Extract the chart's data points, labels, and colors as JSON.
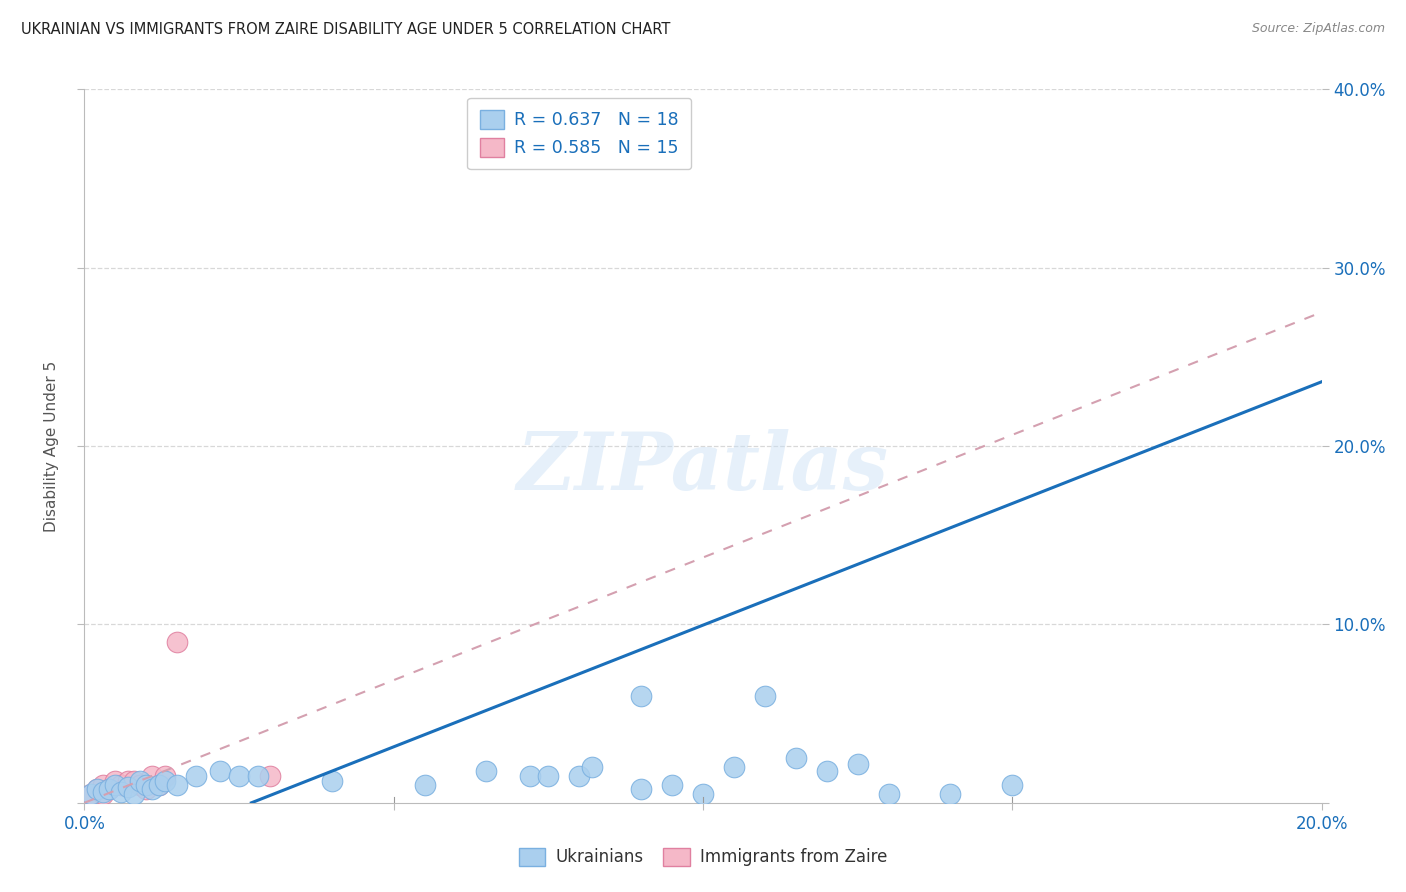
{
  "title": "UKRAINIAN VS IMMIGRANTS FROM ZAIRE DISABILITY AGE UNDER 5 CORRELATION CHART",
  "source": "Source: ZipAtlas.com",
  "ylabel": "Disability Age Under 5",
  "xlim": [
    0.0,
    0.2
  ],
  "ylim": [
    0.0,
    0.4
  ],
  "xticks": [
    0.0,
    0.05,
    0.1,
    0.15,
    0.2
  ],
  "yticks": [
    0.0,
    0.1,
    0.2,
    0.3,
    0.4
  ],
  "right_ytick_labels": [
    "",
    "10.0%",
    "20.0%",
    "30.0%",
    "40.0%"
  ],
  "background_color": "#ffffff",
  "grid_color": "#d8d8d8",
  "ukrainians_color": "#aacfee",
  "ukrainians_edge": "#7ab0e0",
  "zaire_color": "#f5b8c8",
  "zaire_edge": "#e080a0",
  "regression_blue_color": "#1a6fba",
  "regression_pink_color": "#d4a0b0",
  "legend_label_blue": "R = 0.637   N = 18",
  "legend_label_pink": "R = 0.585   N = 15",
  "legend_label_ukrainians": "Ukrainians",
  "legend_label_zaire": "Immigrants from Zaire",
  "watermark": "ZIPatlas",
  "blue_line_x0": 0.027,
  "blue_line_y0": 0.0,
  "blue_line_x1": 0.2,
  "blue_line_y1": 0.236,
  "pink_line_x0": 0.0,
  "pink_line_y0": 0.0,
  "pink_line_x1": 0.2,
  "pink_line_y1": 0.275,
  "ukrainians_x": [
    0.001,
    0.002,
    0.003,
    0.004,
    0.005,
    0.006,
    0.007,
    0.008,
    0.009,
    0.01,
    0.011,
    0.012,
    0.013,
    0.015,
    0.018,
    0.022,
    0.025,
    0.028,
    0.04,
    0.055,
    0.065,
    0.072,
    0.08,
    0.09,
    0.095,
    0.105,
    0.115,
    0.125,
    0.09,
    0.15,
    0.14,
    0.11,
    0.075,
    0.082,
    0.12,
    0.13,
    0.1
  ],
  "ukrainians_y": [
    0.005,
    0.008,
    0.006,
    0.008,
    0.01,
    0.006,
    0.009,
    0.005,
    0.012,
    0.01,
    0.008,
    0.01,
    0.012,
    0.01,
    0.015,
    0.018,
    0.015,
    0.015,
    0.012,
    0.01,
    0.018,
    0.015,
    0.015,
    0.06,
    0.01,
    0.02,
    0.025,
    0.022,
    0.008,
    0.01,
    0.005,
    0.06,
    0.015,
    0.02,
    0.018,
    0.005,
    0.005
  ],
  "zaire_x": [
    0.001,
    0.002,
    0.003,
    0.004,
    0.005,
    0.006,
    0.007,
    0.008,
    0.009,
    0.01,
    0.011,
    0.012,
    0.013,
    0.015,
    0.003,
    0.03
  ],
  "zaire_y": [
    0.005,
    0.008,
    0.01,
    0.008,
    0.012,
    0.01,
    0.012,
    0.012,
    0.01,
    0.008,
    0.015,
    0.01,
    0.015,
    0.09,
    0.005,
    0.015
  ],
  "marker_size": 220
}
